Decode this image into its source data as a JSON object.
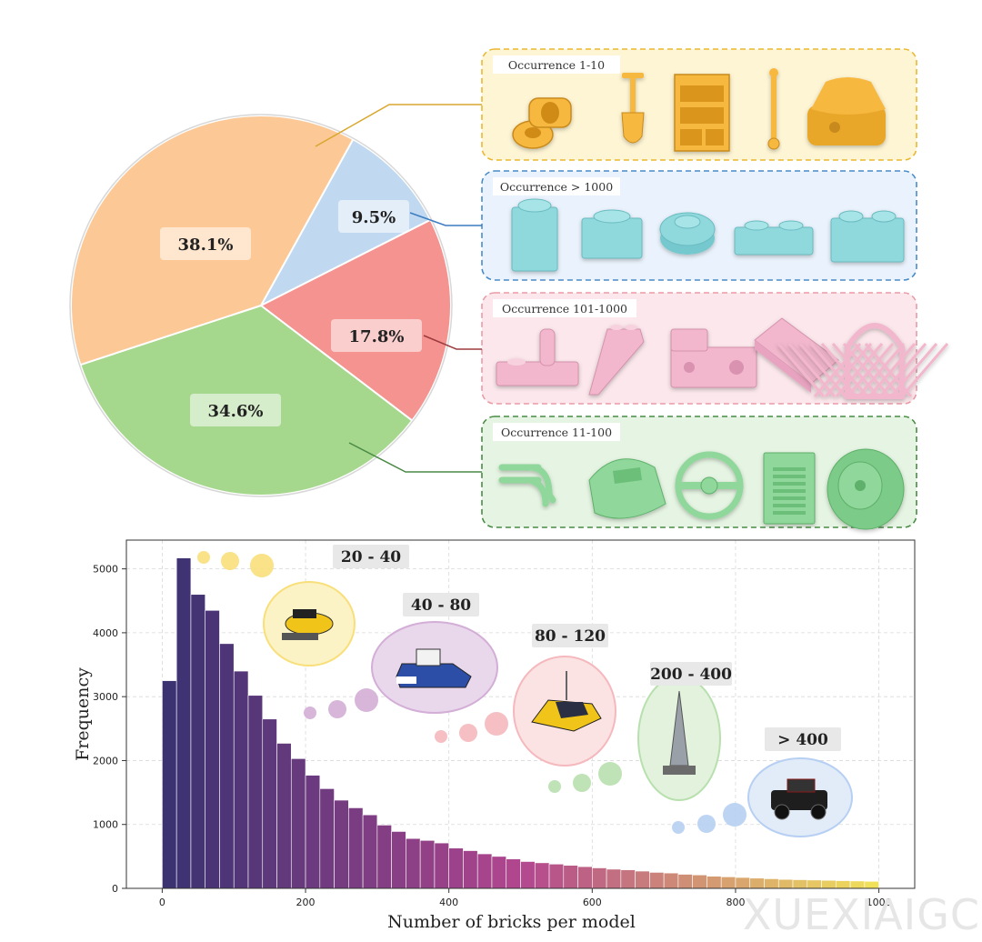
{
  "colors": {
    "pie": [
      "#c0d9f1",
      "#f4938f",
      "#a5d78c",
      "#fcc896"
    ],
    "box_bg": [
      "#fef5d4",
      "#eaf3fd",
      "#fce8ec",
      "#e6f5e3"
    ],
    "box_border": [
      "#e9b731",
      "#4a8bc7",
      "#e89aa7",
      "#4a8a46"
    ],
    "connector": [
      "#d8a72e",
      "#3c7cc0",
      "#9b3b3e",
      "#4a8a46"
    ],
    "brick": [
      "#f7b840",
      "#8fd8dc",
      "#f2b7cc",
      "#8fd79a"
    ],
    "gradient_start": "#3b3272",
    "gradient_mid": "#b2468f",
    "gradient_end": "#f0e05a",
    "bubbles": [
      "#f8df7a",
      "#d3aed6",
      "#f5b8bd",
      "#b8e0ae",
      "#b6cff2"
    ],
    "set_bubble_fill": [
      "#fbf3c6",
      "#e9d7ec",
      "#fbe2e3",
      "#e2f2dc",
      "#e1ecf8"
    ]
  },
  "pie": {
    "slices_order": "clockwise from top-right",
    "labels": [
      "9.5%",
      "17.8%",
      "34.6%",
      "38.1%"
    ],
    "values": [
      9.5,
      17.8,
      34.6,
      38.1
    ]
  },
  "categories": [
    {
      "label": "Occurrence 1-10",
      "icons": [
        "pin-connector-icon",
        "shovel-icon",
        "bookshelf-icon",
        "bar-icon",
        "round-brick-icon"
      ]
    },
    {
      "label": "Occurrence > 1000",
      "icons": [
        "brick-1x1-icon",
        "plate-1x1-icon",
        "round-plate-icon",
        "plate-1x2-icon",
        "brick-1x2-icon"
      ]
    },
    {
      "label": "Occurrence 101-1000",
      "icons": [
        "bracket-plate-icon",
        "wing-slope-icon",
        "technic-brick-icon",
        "plate-4x6-icon",
        "window-lattice-icon"
      ]
    },
    {
      "label": "Occurrence 11-100",
      "icons": [
        "bar-handle-icon",
        "curved-slope-icon",
        "steering-wheel-icon",
        "door-panel-icon",
        "tire-icon"
      ]
    }
  ],
  "chart_data": {
    "type": "bar",
    "xlabel": "Number of bricks per model",
    "ylabel": "Frequency",
    "xlim": [
      -50,
      1050
    ],
    "ylim": [
      0,
      5450
    ],
    "xticks": [
      0,
      200,
      400,
      600,
      800,
      1000
    ],
    "yticks": [
      0,
      1000,
      2000,
      3000,
      4000,
      5000
    ],
    "grid": true,
    "bin_width": 20,
    "x": [
      0,
      20,
      40,
      60,
      80,
      100,
      120,
      140,
      160,
      180,
      200,
      220,
      240,
      260,
      280,
      300,
      320,
      340,
      360,
      380,
      400,
      420,
      440,
      460,
      480,
      500,
      520,
      540,
      560,
      580,
      600,
      620,
      640,
      660,
      680,
      700,
      720,
      740,
      760,
      780,
      800,
      820,
      840,
      860,
      880,
      900,
      920,
      940,
      960,
      980
    ],
    "values": [
      3250,
      5170,
      4600,
      4350,
      3830,
      3400,
      3020,
      2650,
      2270,
      2030,
      1770,
      1560,
      1380,
      1260,
      1150,
      990,
      890,
      780,
      750,
      710,
      630,
      590,
      540,
      500,
      460,
      420,
      400,
      380,
      360,
      340,
      320,
      300,
      290,
      270,
      250,
      240,
      220,
      210,
      190,
      180,
      170,
      160,
      150,
      140,
      135,
      130,
      125,
      120,
      115,
      110
    ]
  },
  "range_annotations": [
    "20 - 40",
    "40 - 80",
    "80 - 120",
    "200 - 400",
    "> 400"
  ],
  "watermark": "XUEXIAIGC"
}
